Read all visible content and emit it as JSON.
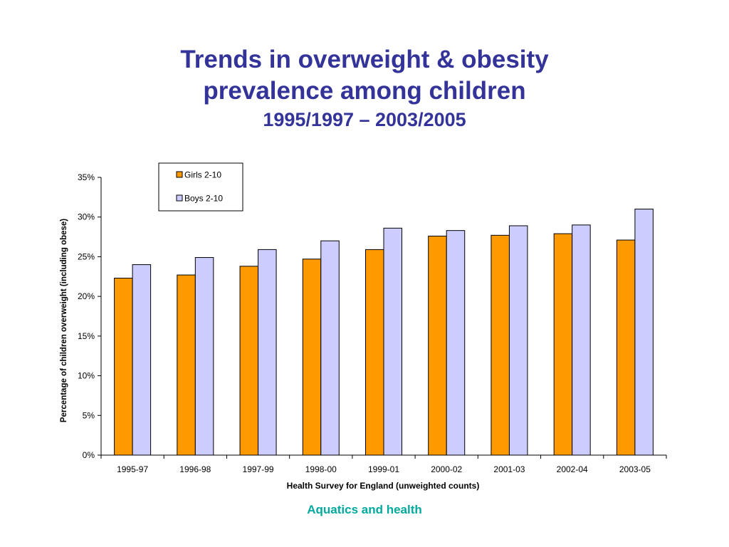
{
  "slide": {
    "title_line1": "Trends in overweight & obesity",
    "title_line2": "prevalence among children",
    "title_line3": "1995/1997 – 2003/2005",
    "footer": "Aquatics and health",
    "colors": {
      "title": "#333399",
      "footer": "#00a99d"
    }
  },
  "chart_data": {
    "type": "bar",
    "categories": [
      "1995-97",
      "1996-98",
      "1997-99",
      "1998-00",
      "1999-01",
      "2000-02",
      "2001-03",
      "2002-04",
      "2003-05"
    ],
    "series": [
      {
        "name": "Girls 2-10",
        "color": "#ff9900",
        "values": [
          22.3,
          22.7,
          23.8,
          24.7,
          25.9,
          27.6,
          27.7,
          27.9,
          27.1
        ]
      },
      {
        "name": "Boys 2-10",
        "color": "#ccccff",
        "values": [
          24.0,
          24.9,
          25.9,
          27.0,
          28.6,
          28.3,
          28.9,
          29.0,
          31.0
        ]
      }
    ],
    "xlabel": "Health Survey for England (unweighted counts)",
    "ylabel": "Percentage of children overweight (including obese)",
    "ylim": [
      0,
      35
    ],
    "yticks": [
      0,
      5,
      10,
      15,
      20,
      25,
      30,
      35
    ],
    "ytick_labels": [
      "0%",
      "5%",
      "10%",
      "15%",
      "20%",
      "25%",
      "30%",
      "35%"
    ],
    "grid": false,
    "legend_position": "top-left"
  }
}
